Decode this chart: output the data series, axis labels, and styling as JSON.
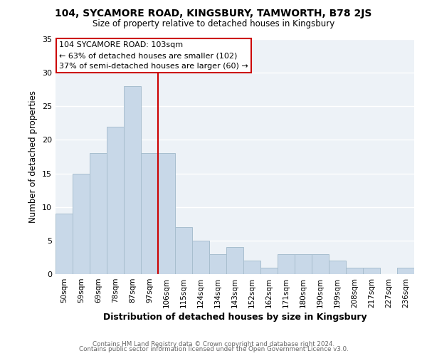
{
  "title": "104, SYCAMORE ROAD, KINGSBURY, TAMWORTH, B78 2JS",
  "subtitle": "Size of property relative to detached houses in Kingsbury",
  "xlabel": "Distribution of detached houses by size in Kingsbury",
  "ylabel": "Number of detached properties",
  "bar_labels": [
    "50sqm",
    "59sqm",
    "69sqm",
    "78sqm",
    "87sqm",
    "97sqm",
    "106sqm",
    "115sqm",
    "124sqm",
    "134sqm",
    "143sqm",
    "152sqm",
    "162sqm",
    "171sqm",
    "180sqm",
    "190sqm",
    "199sqm",
    "208sqm",
    "217sqm",
    "227sqm",
    "236sqm"
  ],
  "bar_values": [
    9,
    15,
    18,
    22,
    28,
    18,
    18,
    7,
    5,
    3,
    4,
    2,
    1,
    3,
    3,
    3,
    2,
    1,
    1,
    0,
    1
  ],
  "bar_color": "#c8d8e8",
  "bar_edge_color": "#a8bece",
  "vline_x": 5.5,
  "vline_color": "#cc0000",
  "annotation_title": "104 SYCAMORE ROAD: 103sqm",
  "annotation_line1": "← 63% of detached houses are smaller (102)",
  "annotation_line2": "37% of semi-detached houses are larger (60) →",
  "annotation_box_color": "#ffffff",
  "annotation_box_edge": "#cc0000",
  "ylim": [
    0,
    35
  ],
  "yticks": [
    0,
    5,
    10,
    15,
    20,
    25,
    30,
    35
  ],
  "footer1": "Contains HM Land Registry data © Crown copyright and database right 2024.",
  "footer2": "Contains public sector information licensed under the Open Government Licence v3.0.",
  "background_color": "#ffffff",
  "plot_bg_color": "#edf2f7",
  "grid_color": "#ffffff"
}
